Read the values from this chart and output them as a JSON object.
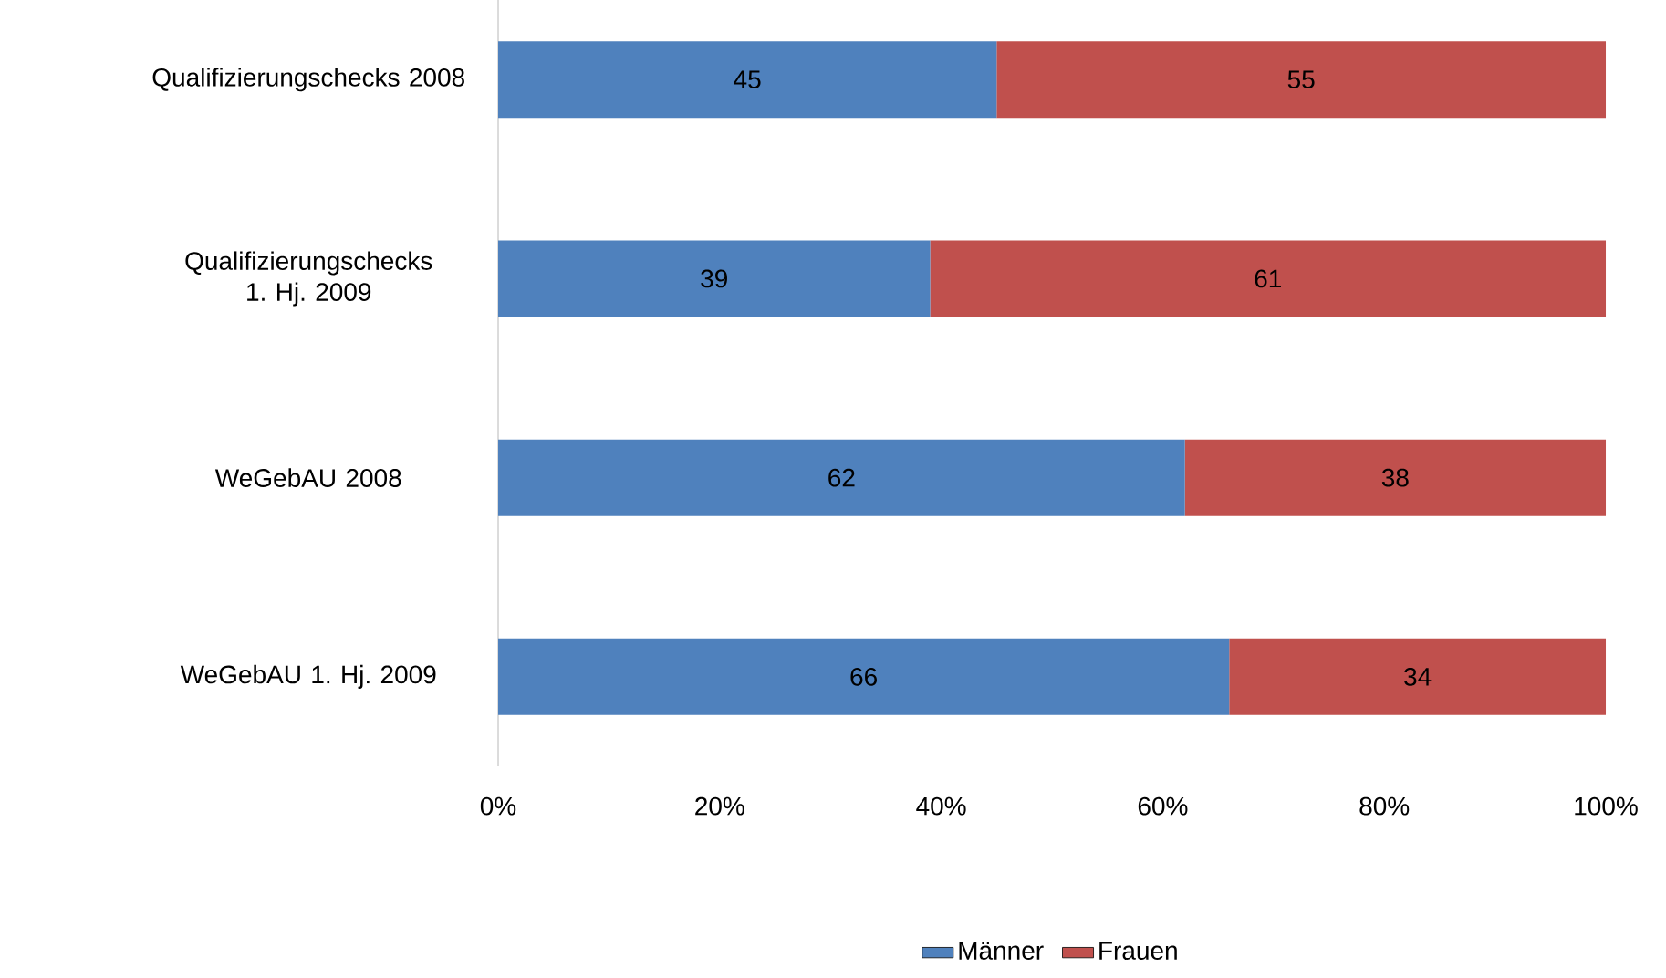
{
  "chart_data": {
    "type": "bar",
    "orientation": "horizontal",
    "stacked": true,
    "data_labels": true,
    "legend": "bottom",
    "categories": [
      "Qualifizierungschecks 2008",
      "Qualifizierungschecks 1. Hj. 2009",
      "WeGebAU 2008",
      "WeGebAU 1. Hj. 2009"
    ],
    "series": [
      {
        "name": "Männer",
        "color": "#4f81bd",
        "values": [
          45,
          39,
          62,
          66
        ]
      },
      {
        "name": "Frauen",
        "color": "#c0504d",
        "values": [
          55,
          61,
          38,
          34
        ]
      }
    ],
    "xlim": [
      0,
      100
    ],
    "xticks": [
      {
        "value": 0,
        "label": "0%"
      },
      {
        "value": 20,
        "label": "20%"
      },
      {
        "value": 40,
        "label": "40%"
      },
      {
        "value": 60,
        "label": "60%"
      },
      {
        "value": 80,
        "label": "80%"
      },
      {
        "value": 100,
        "label": "100%"
      }
    ]
  }
}
